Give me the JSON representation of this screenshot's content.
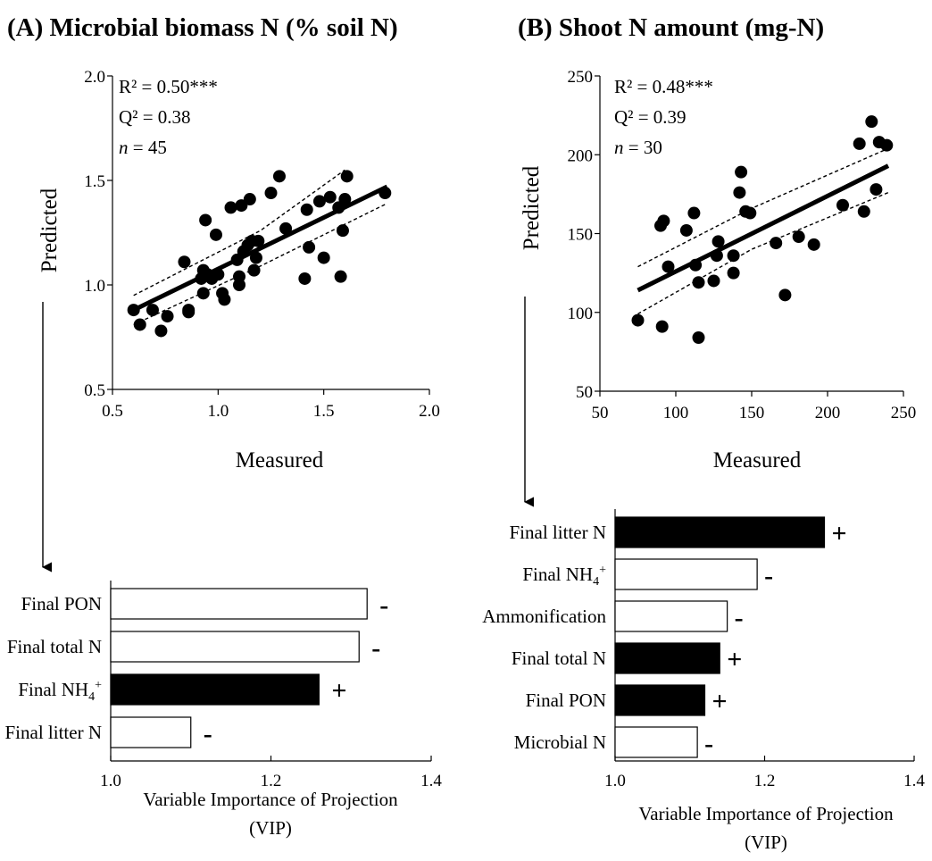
{
  "chart_data": [
    {
      "panel": "A",
      "type": "scatter",
      "title": "(A) Microbial biomass N (% soil N)",
      "xlabel": "Measured",
      "ylabel": "Predicted",
      "xlim": [
        0.5,
        2.0
      ],
      "ylim": [
        0.5,
        2.0
      ],
      "xticks": [
        "0.5",
        "1.0",
        "1.5",
        "2.0"
      ],
      "yticks": [
        "0.5",
        "1.0",
        "1.5",
        "2.0"
      ],
      "stats": {
        "r2": "R² = 0.50***",
        "q2": "Q² = 0.38",
        "n_symbol": "n",
        "n_value": " = 45"
      },
      "fit_line": {
        "x": [
          0.6,
          1.8
        ],
        "y": [
          0.88,
          1.47
        ]
      },
      "ci_upper": {
        "x": [
          0.6,
          1.2,
          1.6
        ],
        "y": [
          0.95,
          1.26,
          1.55
        ]
      },
      "ci_lower": {
        "x": [
          0.6,
          1.2,
          1.8
        ],
        "y": [
          0.81,
          1.09,
          1.39
        ]
      },
      "points": [
        [
          0.6,
          0.88
        ],
        [
          0.63,
          0.81
        ],
        [
          0.69,
          0.88
        ],
        [
          0.73,
          0.78
        ],
        [
          0.76,
          0.85
        ],
        [
          0.84,
          1.11
        ],
        [
          0.86,
          0.87
        ],
        [
          0.86,
          0.88
        ],
        [
          0.92,
          1.03
        ],
        [
          0.93,
          1.07
        ],
        [
          0.93,
          0.96
        ],
        [
          0.94,
          1.31
        ],
        [
          0.95,
          1.05
        ],
        [
          0.97,
          1.03
        ],
        [
          0.99,
          1.24
        ],
        [
          1.0,
          1.05
        ],
        [
          1.02,
          0.96
        ],
        [
          1.03,
          0.93
        ],
        [
          1.06,
          1.37
        ],
        [
          1.09,
          1.12
        ],
        [
          1.1,
          1.0
        ],
        [
          1.1,
          1.04
        ],
        [
          1.11,
          1.38
        ],
        [
          1.12,
          1.16
        ],
        [
          1.14,
          1.19
        ],
        [
          1.15,
          1.41
        ],
        [
          1.16,
          1.21
        ],
        [
          1.17,
          1.07
        ],
        [
          1.18,
          1.13
        ],
        [
          1.19,
          1.21
        ],
        [
          1.25,
          1.44
        ],
        [
          1.29,
          1.52
        ],
        [
          1.32,
          1.27
        ],
        [
          1.41,
          1.03
        ],
        [
          1.42,
          1.36
        ],
        [
          1.43,
          1.18
        ],
        [
          1.48,
          1.4
        ],
        [
          1.5,
          1.13
        ],
        [
          1.53,
          1.42
        ],
        [
          1.57,
          1.37
        ],
        [
          1.58,
          1.04
        ],
        [
          1.59,
          1.26
        ],
        [
          1.6,
          1.41
        ],
        [
          1.61,
          1.52
        ],
        [
          1.79,
          1.44
        ]
      ]
    },
    {
      "panel": "B",
      "type": "scatter",
      "title": "(B) Shoot N amount (mg-N)",
      "xlabel": "Measured",
      "ylabel": "Predicted",
      "xlim": [
        50,
        250
      ],
      "ylim": [
        50,
        250
      ],
      "xticks": [
        "50",
        "100",
        "150",
        "200",
        "250"
      ],
      "yticks": [
        "50",
        "100",
        "150",
        "200",
        "250"
      ],
      "stats": {
        "r2": "R² = 0.48***",
        "q2": "Q² = 0.39",
        "n_symbol": "n",
        "n_value": " = 30"
      },
      "fit_line": {
        "x": [
          75,
          240
        ],
        "y": [
          114,
          193
        ]
      },
      "ci_upper": {
        "x": [
          75,
          150,
          240
        ],
        "y": [
          129,
          166,
          204
        ]
      },
      "ci_lower": {
        "x": [
          75,
          150,
          240
        ],
        "y": [
          99,
          140,
          176
        ]
      },
      "points": [
        [
          75,
          95
        ],
        [
          90,
          155
        ],
        [
          91,
          91
        ],
        [
          92,
          158
        ],
        [
          95,
          129
        ],
        [
          107,
          152
        ],
        [
          112,
          163
        ],
        [
          113,
          130
        ],
        [
          115,
          84
        ],
        [
          115,
          119
        ],
        [
          125,
          120
        ],
        [
          127,
          136
        ],
        [
          128,
          145
        ],
        [
          138,
          125
        ],
        [
          138,
          136
        ],
        [
          142,
          176
        ],
        [
          143,
          189
        ],
        [
          146,
          164
        ],
        [
          149,
          163
        ],
        [
          166,
          144
        ],
        [
          172,
          111
        ],
        [
          181,
          148
        ],
        [
          191,
          143
        ],
        [
          210,
          168
        ],
        [
          221,
          207
        ],
        [
          224,
          164
        ],
        [
          229,
          221
        ],
        [
          232,
          178
        ],
        [
          234,
          208
        ],
        [
          239,
          206
        ]
      ]
    },
    {
      "panel": "A-VIP",
      "type": "bar",
      "orientation": "horizontal",
      "xlabel_line1": "Variable Importance of Projection",
      "xlabel_line2": "(VIP)",
      "xlim": [
        1.0,
        1.4
      ],
      "xticks": [
        "1.0",
        "1.2",
        "1.4"
      ],
      "bars": [
        {
          "label": "Final PON",
          "value": 1.32,
          "fill": "#ffffff",
          "sign": "-"
        },
        {
          "label": "Final total N",
          "value": 1.31,
          "fill": "#ffffff",
          "sign": "-"
        },
        {
          "label": "Final NH4+",
          "label_base": "Final NH",
          "label_sub": "4",
          "label_sup": "+",
          "value": 1.26,
          "fill": "#000000",
          "sign": "+"
        },
        {
          "label": "Final litter N",
          "value": 1.1,
          "fill": "#ffffff",
          "sign": "-"
        }
      ]
    },
    {
      "panel": "B-VIP",
      "type": "bar",
      "orientation": "horizontal",
      "xlabel_line1": "Variable Importance of Projection",
      "xlabel_line2": "(VIP)",
      "xlim": [
        1.0,
        1.4
      ],
      "xticks": [
        "1.0",
        "1.2",
        "1.4"
      ],
      "bars": [
        {
          "label": "Final litter N",
          "value": 1.28,
          "fill": "#000000",
          "sign": "+"
        },
        {
          "label": "Final NH4+",
          "label_base": "Final NH",
          "label_sub": "4",
          "label_sup": "+",
          "value": 1.19,
          "fill": "#ffffff",
          "sign": "-"
        },
        {
          "label": "Ammonification",
          "value": 1.15,
          "fill": "#ffffff",
          "sign": "-"
        },
        {
          "label": "Final total N",
          "value": 1.14,
          "fill": "#000000",
          "sign": "+"
        },
        {
          "label": "Final PON",
          "value": 1.12,
          "fill": "#000000",
          "sign": "+"
        },
        {
          "label": "Microbial N",
          "value": 1.11,
          "fill": "#ffffff",
          "sign": "-"
        }
      ]
    }
  ]
}
